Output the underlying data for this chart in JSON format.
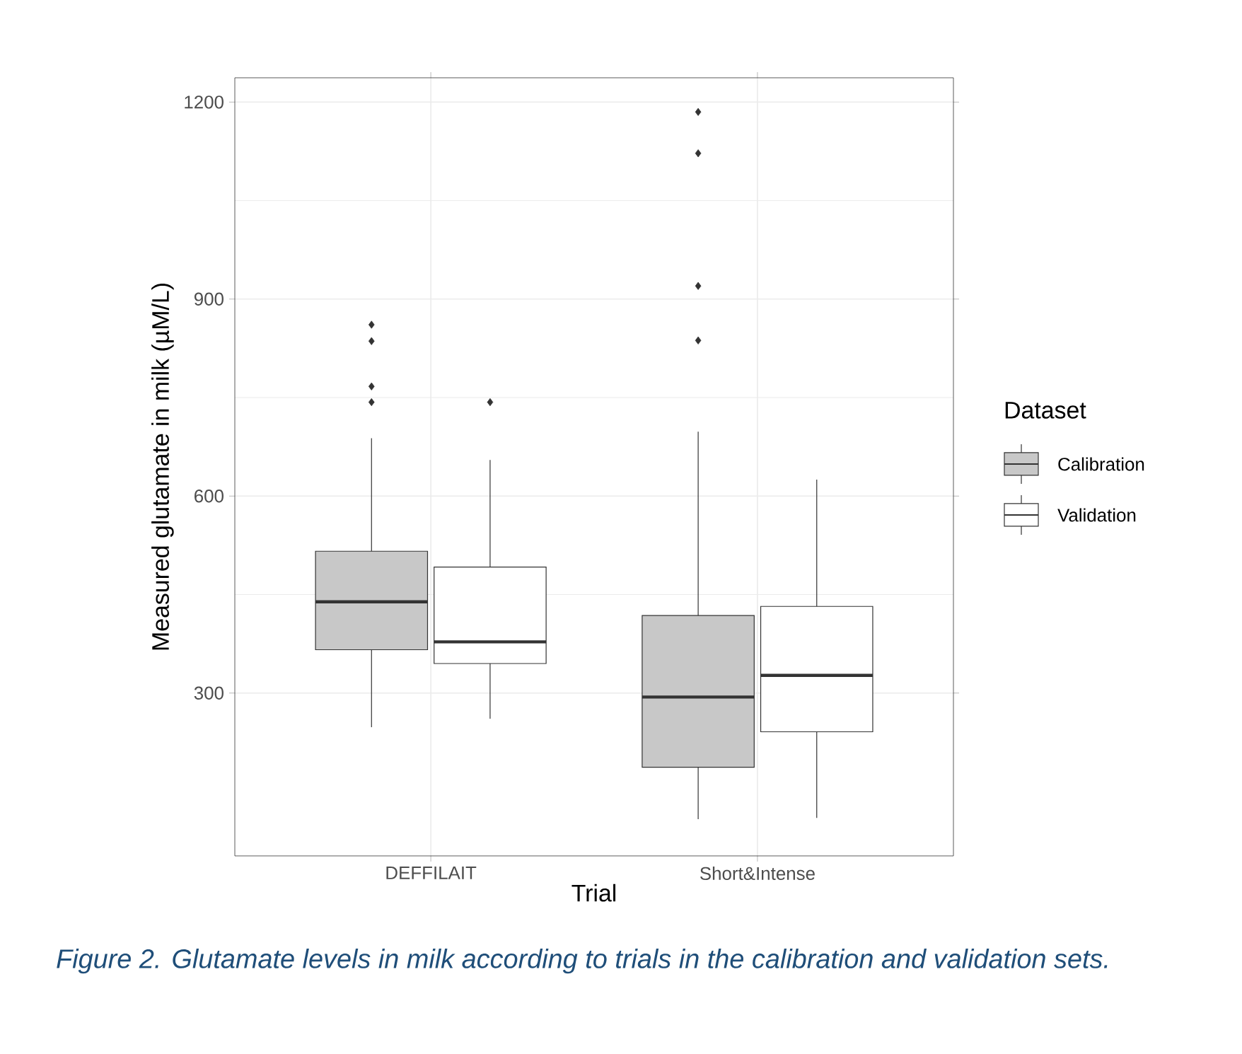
{
  "chart_data": {
    "type": "box",
    "categories": [
      "DEFFILAIT",
      "Short&Intense"
    ],
    "xlabel": "Trial",
    "ylabel": "Measured glutamate in milk (µM/L)",
    "legend_title": "Dataset",
    "ylim": [
      52,
      1237
    ],
    "yticks": [
      300,
      600,
      900,
      1200
    ],
    "grid": true,
    "legend": "right",
    "marker": "diamond",
    "series": [
      {
        "name": "Calibration",
        "color": "#c8c8c8",
        "boxes": [
          {
            "low": 248,
            "q1": 366,
            "median": 439,
            "q3": 516,
            "high": 688,
            "outliers": [
              861,
              836,
              767,
              743
            ]
          },
          {
            "low": 108,
            "q1": 187,
            "median": 294,
            "q3": 418,
            "high": 698,
            "outliers": [
              1185,
              1122,
              920,
              837
            ]
          }
        ]
      },
      {
        "name": "Validation",
        "color": "#ffffff",
        "boxes": [
          {
            "low": 261,
            "q1": 345,
            "median": 378,
            "q3": 492,
            "high": 655,
            "outliers": [
              743
            ]
          },
          {
            "low": 110,
            "q1": 241,
            "median": 327,
            "q3": 432,
            "high": 625
          }
        ]
      }
    ],
    "annotations": [
      "Figure 2. Glutamate levels in milk according to trials in the calibration and validation sets."
    ]
  }
}
